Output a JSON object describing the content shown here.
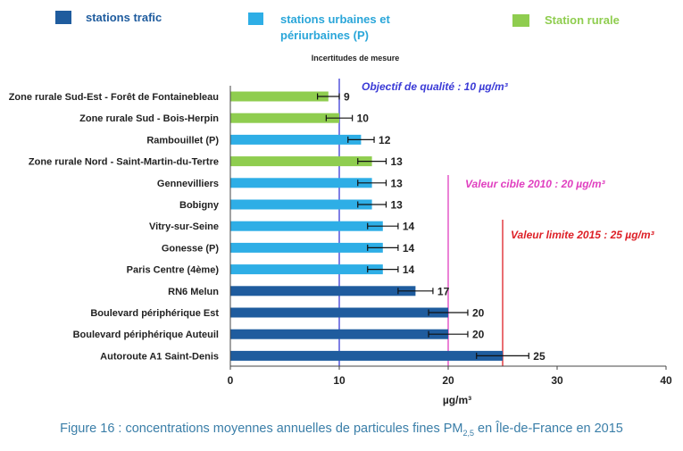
{
  "chart_data": {
    "type": "bar",
    "orientation": "horizontal",
    "subtitle": "Incertitudes de mesure",
    "xlabel": "µg/m³",
    "xlim": [
      0,
      40
    ],
    "xticks": [
      "0",
      "10",
      "20",
      "30",
      "40"
    ],
    "legend": [
      {
        "label": "stations trafic",
        "color": "#1f5c9e"
      },
      {
        "label": "stations urbaines et périurbaines (P)",
        "color": "#2eaee6"
      },
      {
        "label": "Station rurale",
        "color": "#8fcd4f"
      }
    ],
    "categories": [
      "Zone rurale Sud-Est - Forêt de Fontainebleau",
      "Zone rurale Sud - Bois-Herpin",
      "Rambouillet (P)",
      "Zone rurale Nord - Saint-Martin-du-Tertre",
      "Gennevilliers",
      "Bobigny",
      "Vitry-sur-Seine",
      "Gonesse (P)",
      "Paris Centre (4ème)",
      "RN6 Melun",
      "Boulevard périphérique Est",
      "Boulevard périphérique Auteuil",
      "Autoroute A1 Saint-Denis"
    ],
    "values": [
      9,
      10,
      12,
      13,
      13,
      13,
      14,
      14,
      14,
      17,
      20,
      20,
      25
    ],
    "value_labels": [
      "9",
      "10",
      "12",
      "13",
      "13",
      "13",
      "14",
      "14",
      "14",
      "17",
      "20",
      "20",
      "25"
    ],
    "station_types": [
      "rural",
      "rural",
      "urban",
      "rural",
      "urban",
      "urban",
      "urban",
      "urban",
      "urban",
      "traffic",
      "traffic",
      "traffic",
      "traffic"
    ],
    "uncertainty": [
      1.0,
      1.2,
      1.2,
      1.3,
      1.3,
      1.3,
      1.4,
      1.4,
      1.4,
      1.6,
      1.8,
      1.8,
      2.4
    ],
    "reference_lines": [
      {
        "value": 10,
        "label": "Objectif de qualité : 10 µg/m³",
        "color": "#3a3ad6"
      },
      {
        "value": 20,
        "label": "Valeur cible 2010 : 20 µg/m³",
        "color": "#e040c0"
      },
      {
        "value": 25,
        "label": "Valeur limite 2015 : 25 µg/m³",
        "color": "#dd1f26"
      }
    ]
  },
  "caption": {
    "before": "Figure 16 : concentrations moyennes annuelles de particules fines PM",
    "sub": "2,5",
    "after": " en Île-de-France en 2015"
  }
}
